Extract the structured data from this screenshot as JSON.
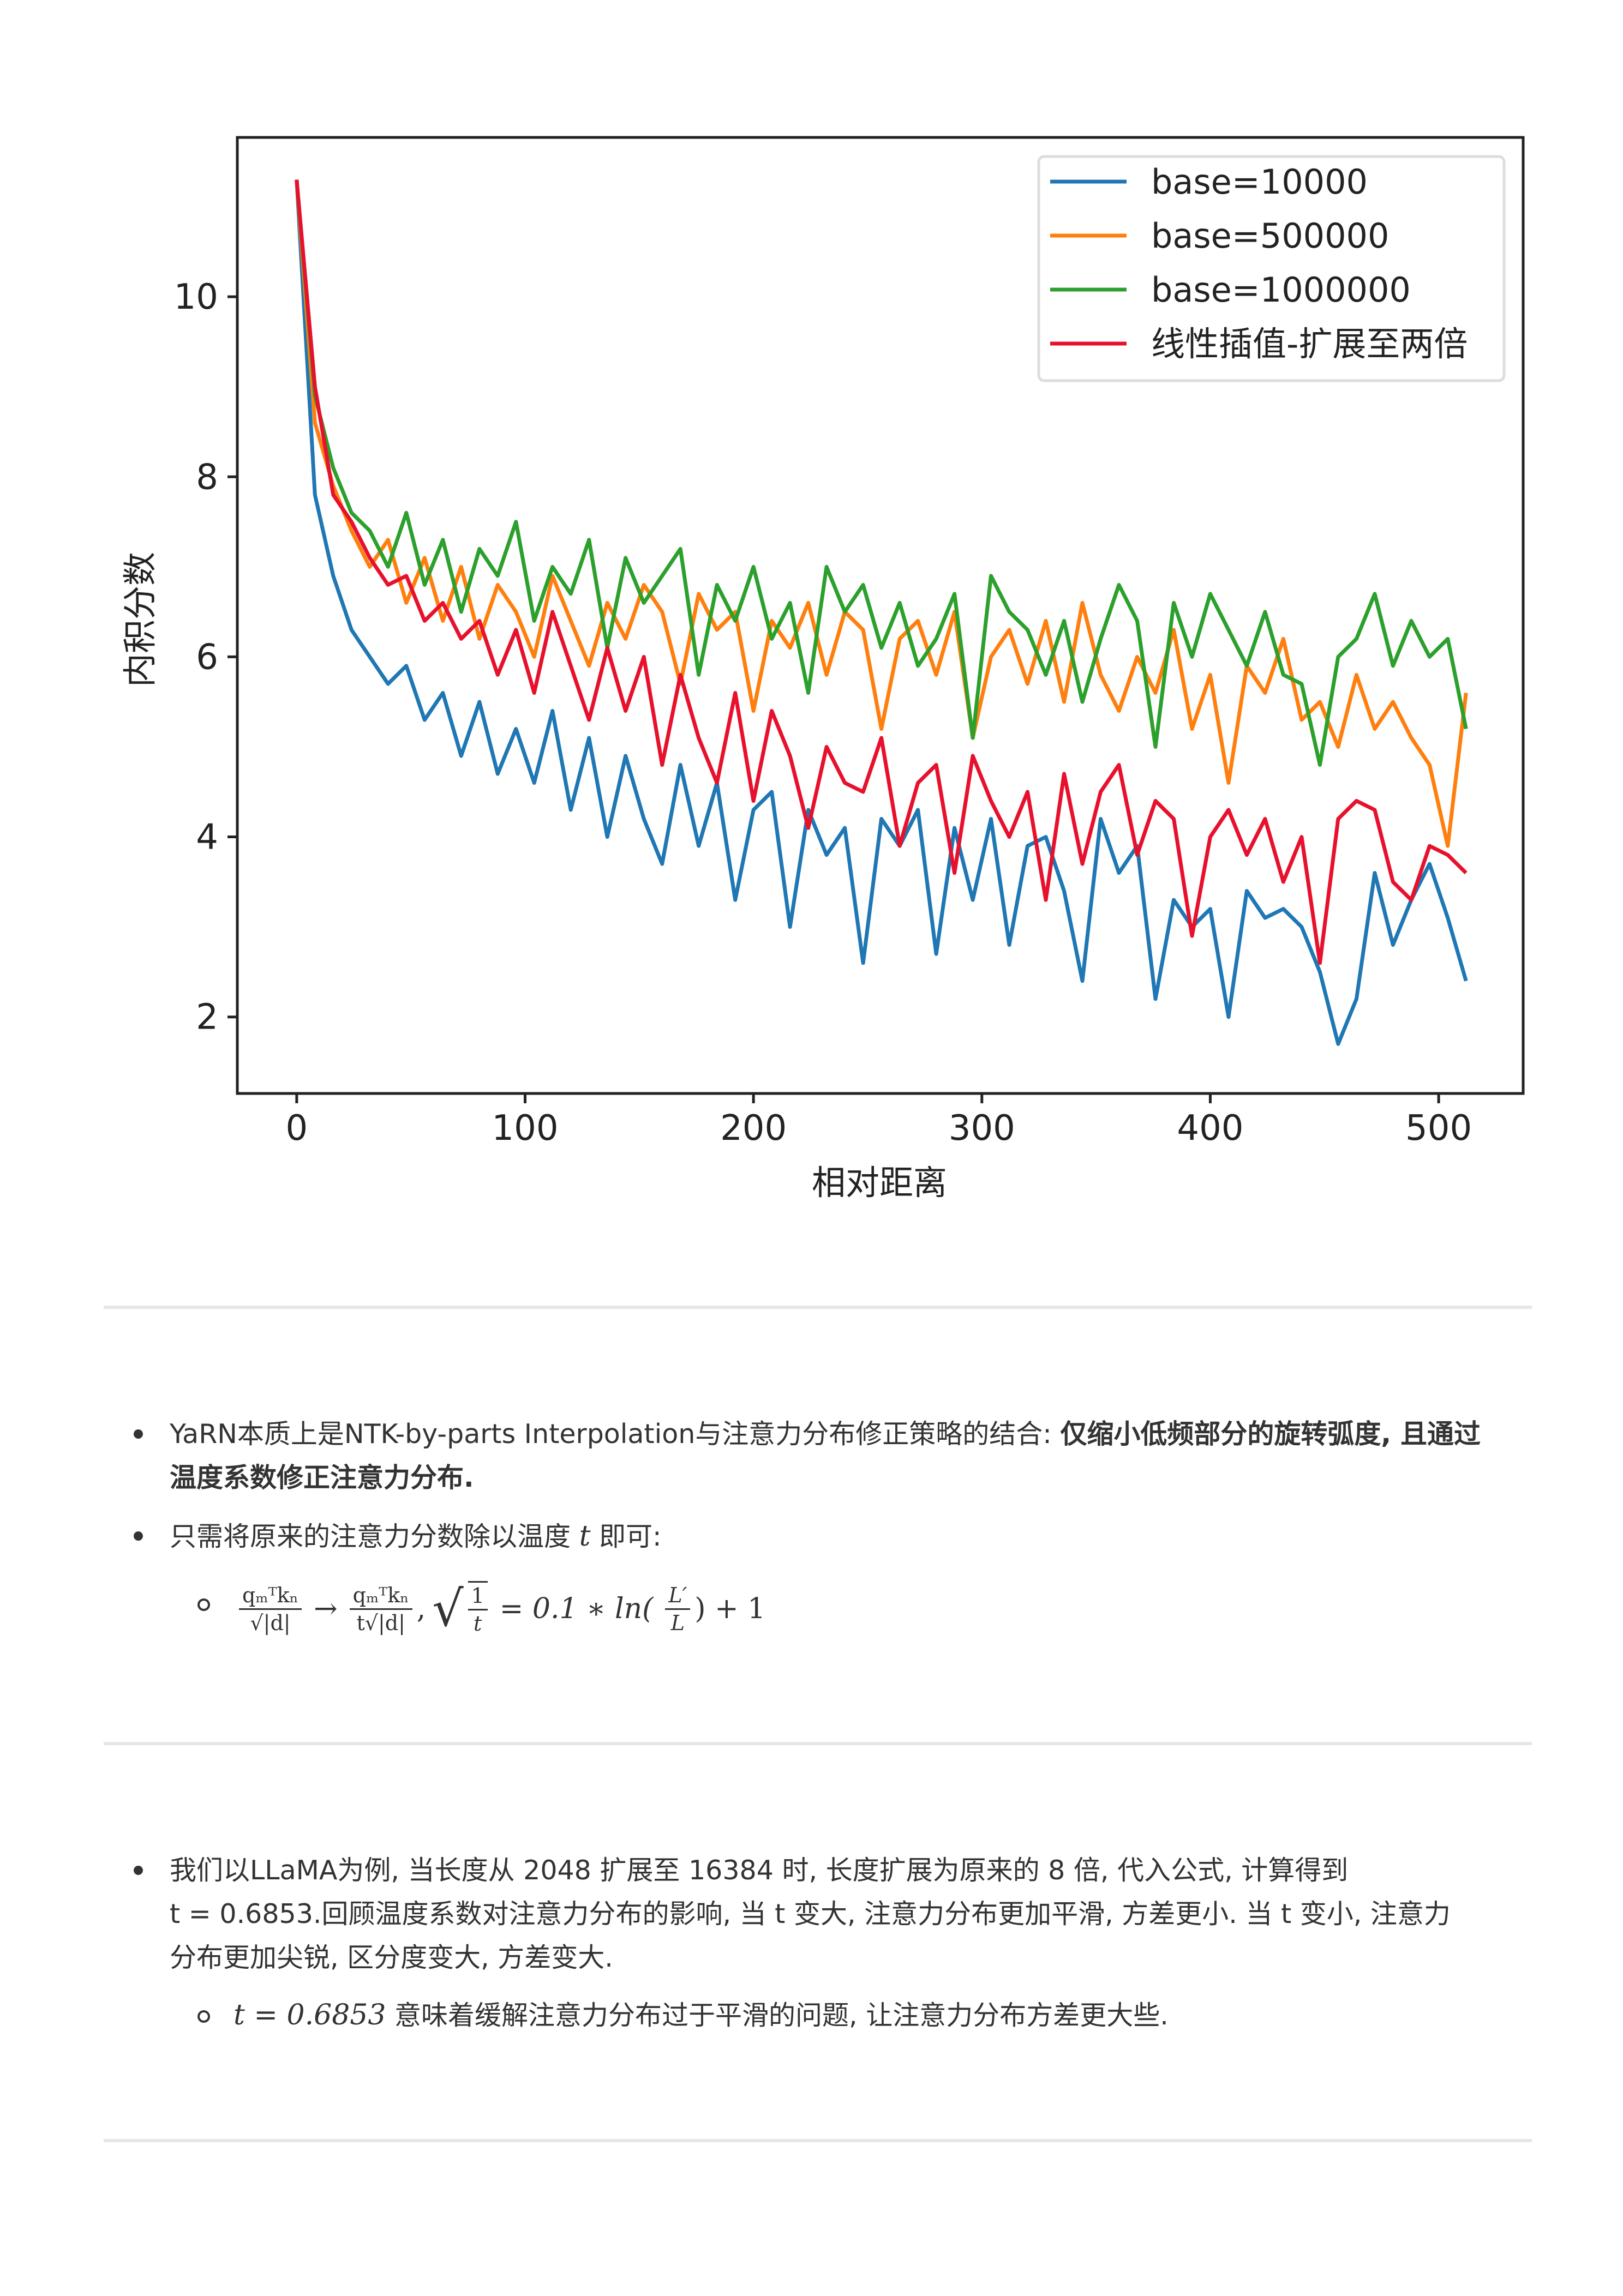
{
  "chart_data": {
    "type": "line",
    "xlabel": "相对距离",
    "ylabel": "内积分数",
    "xlim": [
      -26,
      537
    ],
    "ylim": [
      1.15,
      11.77
    ],
    "xticks": [
      "0",
      "100",
      "200",
      "300",
      "400",
      "500"
    ],
    "xtick_values": [
      0,
      100,
      200,
      300,
      400,
      500
    ],
    "yticks": [
      "2",
      "4",
      "6",
      "8",
      "10"
    ],
    "ytick_values": [
      2,
      4,
      6,
      8,
      10
    ],
    "legend_position": "top-right",
    "x_start": 0,
    "x_step": 8,
    "series": [
      {
        "name": "base=10000",
        "color": "#1f77b4",
        "values": [
          11.3,
          7.8,
          6.9,
          6.3,
          6.0,
          5.7,
          5.9,
          5.3,
          5.6,
          4.9,
          5.5,
          4.7,
          5.2,
          4.6,
          5.4,
          4.3,
          5.1,
          4.0,
          4.9,
          4.2,
          3.7,
          4.8,
          3.9,
          4.6,
          3.3,
          4.3,
          4.5,
          3.0,
          4.3,
          3.8,
          4.1,
          2.6,
          4.2,
          3.9,
          4.3,
          2.7,
          4.1,
          3.3,
          4.2,
          2.8,
          3.9,
          4.0,
          3.4,
          2.4,
          4.2,
          3.6,
          3.9,
          2.2,
          3.3,
          3.0,
          3.2,
          2.0,
          3.4,
          3.1,
          3.2,
          3.0,
          2.5,
          1.7,
          2.2,
          3.6,
          2.8,
          3.3,
          3.7,
          3.1,
          2.4
        ]
      },
      {
        "name": "base=500000",
        "color": "#ff7f0e",
        "values": [
          11.3,
          8.6,
          7.9,
          7.4,
          7.0,
          7.3,
          6.6,
          7.1,
          6.4,
          7.0,
          6.2,
          6.8,
          6.5,
          6.0,
          6.9,
          6.4,
          5.9,
          6.6,
          6.2,
          6.8,
          6.5,
          5.7,
          6.7,
          6.3,
          6.5,
          5.4,
          6.4,
          6.1,
          6.6,
          5.8,
          6.5,
          6.3,
          5.2,
          6.2,
          6.4,
          5.8,
          6.5,
          5.1,
          6.0,
          6.3,
          5.7,
          6.4,
          5.5,
          6.6,
          5.8,
          5.4,
          6.0,
          5.6,
          6.3,
          5.2,
          5.8,
          4.6,
          5.9,
          5.6,
          6.2,
          5.3,
          5.5,
          5.0,
          5.8,
          5.2,
          5.5,
          5.1,
          4.8,
          3.9,
          5.6
        ]
      },
      {
        "name": "base=1000000",
        "color": "#2ca02c",
        "values": [
          11.3,
          8.9,
          8.1,
          7.6,
          7.4,
          7.0,
          7.6,
          6.8,
          7.3,
          6.5,
          7.2,
          6.9,
          7.5,
          6.4,
          7.0,
          6.7,
          7.3,
          6.1,
          7.1,
          6.6,
          6.9,
          7.2,
          5.8,
          6.8,
          6.4,
          7.0,
          6.2,
          6.6,
          5.6,
          7.0,
          6.5,
          6.8,
          6.1,
          6.6,
          5.9,
          6.2,
          6.7,
          5.1,
          6.9,
          6.5,
          6.3,
          5.8,
          6.4,
          5.5,
          6.2,
          6.8,
          6.4,
          5.0,
          6.6,
          6.0,
          6.7,
          6.3,
          5.9,
          6.5,
          5.8,
          5.7,
          4.8,
          6.0,
          6.2,
          6.7,
          5.9,
          6.4,
          6.0,
          6.2,
          5.2
        ]
      },
      {
        "name": "线性插值-扩展至两倍",
        "color": "#e8112d",
        "values": [
          11.3,
          9.0,
          7.8,
          7.5,
          7.1,
          6.8,
          6.9,
          6.4,
          6.6,
          6.2,
          6.4,
          5.8,
          6.3,
          5.6,
          6.5,
          5.9,
          5.3,
          6.1,
          5.4,
          6.0,
          4.8,
          5.8,
          5.1,
          4.6,
          5.6,
          4.4,
          5.4,
          4.9,
          4.1,
          5.0,
          4.6,
          4.5,
          5.1,
          3.9,
          4.6,
          4.8,
          3.6,
          4.9,
          4.4,
          4.0,
          4.5,
          3.3,
          4.7,
          3.7,
          4.5,
          4.8,
          3.8,
          4.4,
          4.2,
          2.9,
          4.0,
          4.3,
          3.8,
          4.2,
          3.5,
          4.0,
          2.6,
          4.2,
          4.4,
          4.3,
          3.5,
          3.3,
          3.9,
          3.8,
          3.6
        ]
      }
    ]
  },
  "section1": {
    "line1_pre": "YaRN本质上是NTK-by-parts Interpolation与注意力分布修正策略的结合: ",
    "line1_bold": "仅缩小低频部分的旋转弧度, 且通过",
    "line2_bold": "温度系数修正注意力分布.",
    "bullet2_pre": "只需将原来的注意力分数除以温度 ",
    "bullet2_var": "t",
    "bullet2_post": " 即可:",
    "formula": {
      "num": "qₘᵀkₙ",
      "den1": "√|d|",
      "arrow": "→",
      "den2": "t√|d|",
      "comma": ",",
      "sqrt_num": "1",
      "sqrt_den": "t",
      "rhs": "= 0.1 ∗ ln(",
      "frac_num": "L′",
      "frac_den": "L",
      "tail": ") + 1"
    }
  },
  "section2": {
    "line1": "我们以LLaMA为例, 当长度从 2048 扩展至 16384 时, 长度扩展为原来的 8 倍, 代入公式, 计算得到",
    "line2": "t = 0.6853.回顾温度系数对注意力分布的影响, 当 t 变大, 注意力分布更加平滑, 方差更小. 当 t 变小, 注意力",
    "line3": "分布更加尖锐, 区分度变大, 方差变大.",
    "sub_math": "t = 0.6853",
    "sub_text": " 意味着缓解注意力分布过于平滑的问题, 让注意力分布方差更大些."
  }
}
